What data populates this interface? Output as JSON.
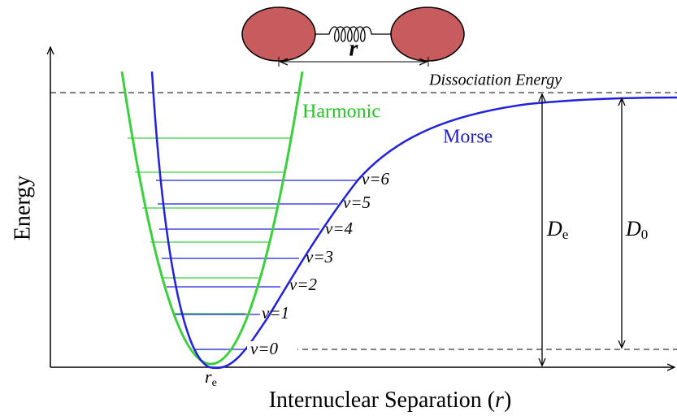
{
  "diagram": {
    "dissociation_label": "Dissociation Energy",
    "harmonic_label": "Harmonic",
    "morse_label": "Morse",
    "levels": [
      "v=0",
      "v=1",
      "v=2",
      "v=3",
      "v=4",
      "v=5",
      "v=6"
    ],
    "bond_label": "r",
    "equilibrium_label": {
      "main": "r",
      "sub": "e"
    },
    "de_label": {
      "main": "D",
      "sub": "e"
    },
    "d0_label": {
      "main": "D",
      "sub": "0"
    },
    "y_axis_label": "Energy",
    "x_axis_label": {
      "main": "Internuclear Separation (",
      "var": "r",
      "end": ")"
    }
  }
}
